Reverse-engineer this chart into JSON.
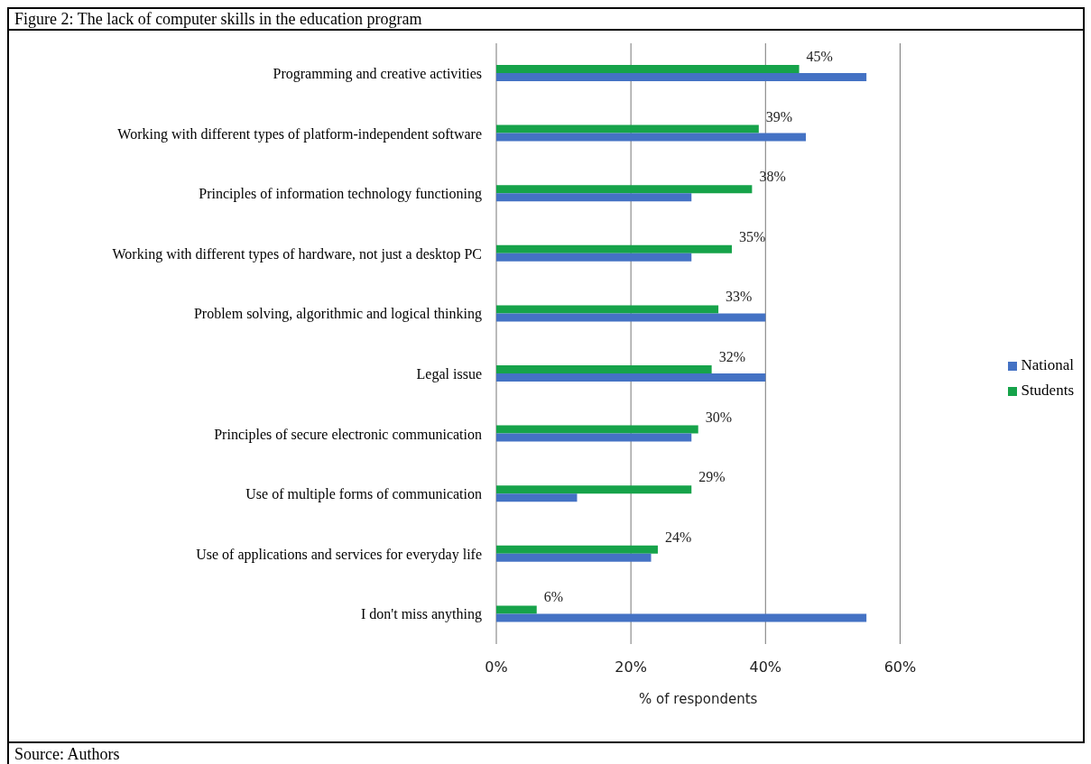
{
  "chart_data": {
    "type": "bar",
    "orientation": "horizontal",
    "title": "Figure 2: The lack of computer skills in the education program",
    "xlabel": "% of respondents",
    "categories": [
      "Programming and creative activities",
      "Working with different types of platform-independent software",
      "Principles of information technology functioning",
      "Working with different types of hardware, not just a desktop PC",
      "Problem solving, algorithmic and logical thinking",
      "Legal issue",
      "Principles of secure electronic communication",
      "Use of multiple forms of communication",
      "Use of applications and services for everyday life",
      "I don't miss anything"
    ],
    "series": [
      {
        "name": "Students",
        "color": "#16a34a",
        "values": [
          45,
          39,
          38,
          35,
          33,
          32,
          30,
          29,
          24,
          6
        ],
        "value_labels": [
          "45%",
          "39%",
          "38%",
          "35%",
          "33%",
          "32%",
          "30%",
          "29%",
          "24%",
          "6%"
        ]
      },
      {
        "name": "National",
        "color": "#4472c4",
        "values": [
          55,
          46,
          29,
          29,
          40,
          40,
          29,
          12,
          23,
          55
        ]
      }
    ],
    "xlim": [
      0,
      60
    ],
    "xticks": [
      {
        "value": 0,
        "label": "0%"
      },
      {
        "value": 20,
        "label": "20%"
      },
      {
        "value": 40,
        "label": "40%"
      },
      {
        "value": 60,
        "label": "60%"
      }
    ],
    "grid": "x",
    "legend": "right",
    "annotations": [
      "Source: Authors"
    ]
  }
}
